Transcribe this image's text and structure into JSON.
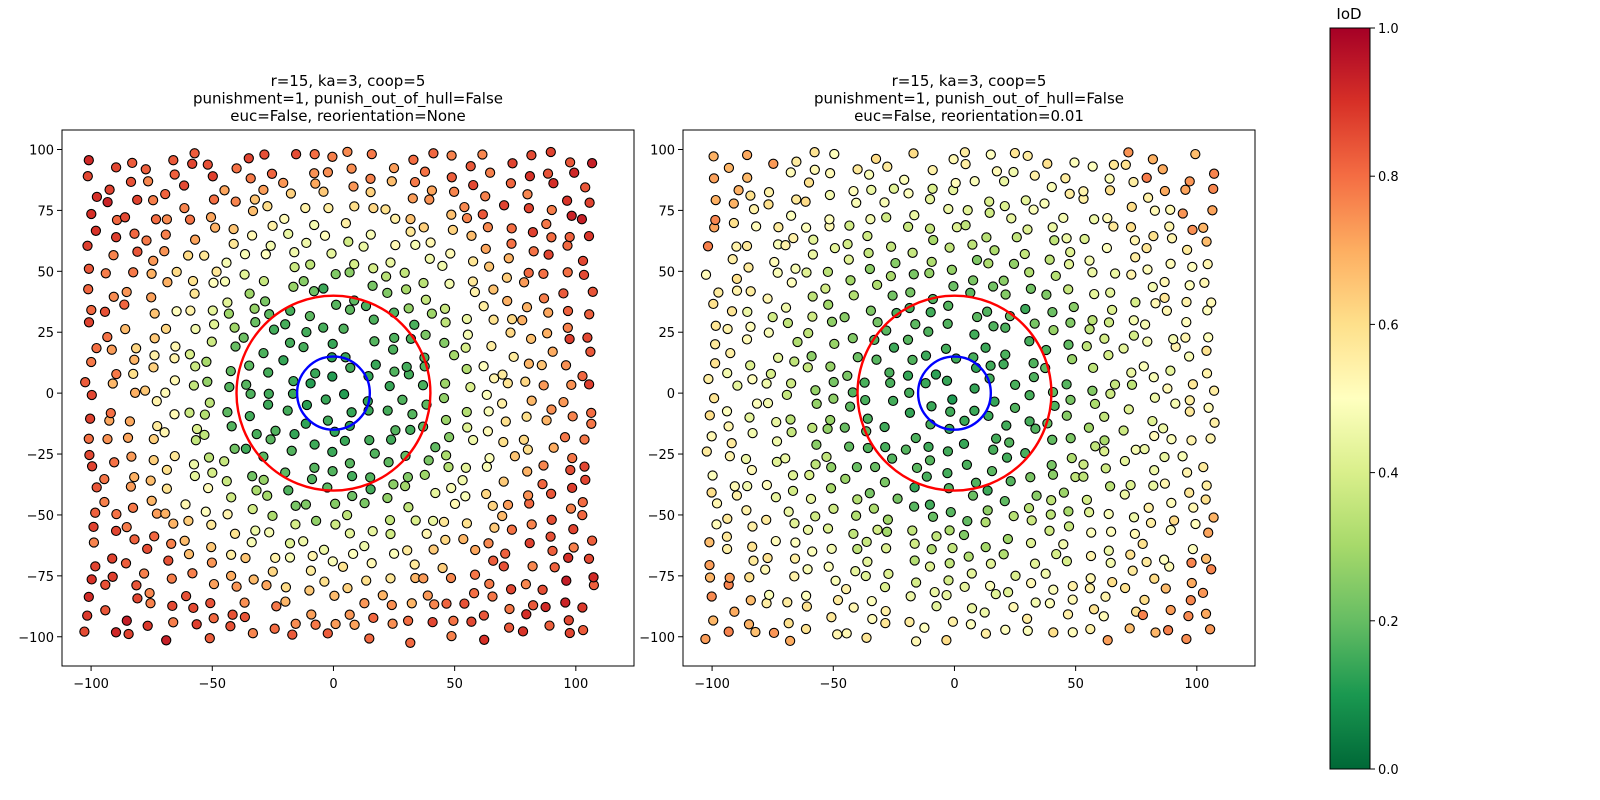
{
  "chart_data": [
    {
      "type": "scatter",
      "title": [
        "r=15, ka=3, coop=5",
        "punishment=1, punish_out_of_hull=False",
        "euc=False, reorientation=None"
      ],
      "xlim": [
        -112,
        124
      ],
      "ylim": [
        -112,
        108
      ],
      "xticks": [
        -100,
        -50,
        0,
        50,
        100
      ],
      "yticks": [
        -100,
        -75,
        -50,
        -25,
        0,
        25,
        50,
        75,
        100
      ],
      "circles": [
        {
          "cx": 0,
          "cy": 0,
          "r": 40,
          "color": "#ff0000"
        },
        {
          "cx": 0,
          "cy": 0,
          "r": 15,
          "color": "#0000ff"
        }
      ],
      "points_note": "~600 agents on a jittered lattice over [-100,105]x[-100,98]; color = IoD value",
      "color_field": {
        "center": 0.12,
        "edge": 0.82,
        "corner": 0.88
      }
    },
    {
      "type": "scatter",
      "title": [
        "r=15, ka=3, coop=5",
        "punishment=1, punish_out_of_hull=False",
        "euc=False, reorientation=0.01"
      ],
      "xlim": [
        -112,
        124
      ],
      "ylim": [
        -112,
        108
      ],
      "xticks": [
        -100,
        -50,
        0,
        50,
        100
      ],
      "yticks": [
        -100,
        -75,
        -50,
        -25,
        0,
        25,
        50,
        75,
        100
      ],
      "circles": [
        {
          "cx": 0,
          "cy": 0,
          "r": 40,
          "color": "#ff0000"
        },
        {
          "cx": 0,
          "cy": 0,
          "r": 15,
          "color": "#0000ff"
        }
      ],
      "color_field": {
        "center": 0.12,
        "edge": 0.55,
        "corner": 0.72
      }
    }
  ],
  "colorbar": {
    "label": "IoD",
    "cmap": "RdYlGn_r",
    "range": [
      0.0,
      1.0
    ],
    "ticks": [
      "0.0",
      "0.2",
      "0.4",
      "0.6",
      "0.8",
      "1.0"
    ]
  }
}
